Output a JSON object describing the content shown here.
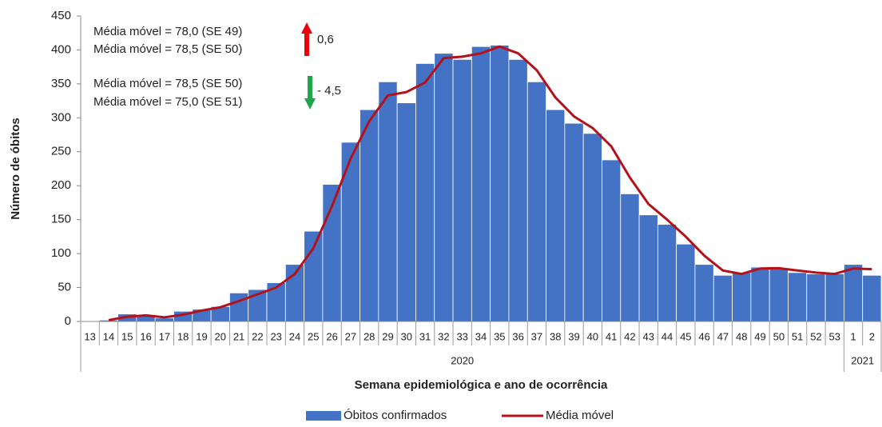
{
  "chart_data": {
    "type": "bar",
    "y_label": "Número de óbitos",
    "x_label": "Semana epidemiológica  e ano de ocorrência",
    "groups": [
      {
        "label": "2020",
        "categories": [
          "13",
          "14",
          "15",
          "16",
          "17",
          "18",
          "19",
          "20",
          "21",
          "22",
          "23",
          "24",
          "25",
          "26",
          "27",
          "28",
          "29",
          "30",
          "31",
          "32",
          "33",
          "34",
          "35",
          "36",
          "37",
          "38",
          "39",
          "40",
          "41",
          "42",
          "43",
          "44",
          "45",
          "46",
          "47",
          "48",
          "49",
          "50",
          "51",
          "52",
          "53"
        ]
      },
      {
        "label": "2021",
        "categories": [
          "1",
          "2"
        ]
      }
    ],
    "series": [
      {
        "name": "Óbitos confirmados",
        "type": "bar",
        "color": "#4472c4",
        "values": [
          0,
          2,
          11,
          10,
          5,
          15,
          18,
          22,
          42,
          47,
          57,
          84,
          133,
          202,
          264,
          312,
          353,
          322,
          380,
          395,
          386,
          405,
          407,
          386,
          353,
          312,
          292,
          277,
          238,
          188,
          157,
          143,
          114,
          84,
          68,
          72,
          80,
          78,
          72,
          70,
          70,
          84,
          68
        ]
      },
      {
        "name": "Média móvel",
        "type": "line",
        "color": "#b3121b",
        "values": [
          null,
          2,
          7,
          9,
          6,
          10,
          16,
          21,
          30,
          40,
          50,
          70,
          108,
          170,
          240,
          295,
          333,
          338,
          352,
          388,
          390,
          395,
          405,
          395,
          370,
          330,
          302,
          285,
          258,
          212,
          173,
          150,
          125,
          97,
          75,
          70,
          78,
          78.5,
          75,
          72,
          70,
          78,
          77
        ]
      }
    ],
    "ylim": [
      0,
      450
    ],
    "yticks": [
      0,
      50,
      100,
      150,
      200,
      250,
      300,
      350,
      400,
      450
    ],
    "annotations": [
      {
        "lines": [
          "Média móvel = 78,0 (SE 49)",
          "Média móvel = 78,5 (SE 50)"
        ],
        "change": "0,6"
      },
      {
        "lines": [
          "Média móvel = 78,5 (SE 50)",
          "Média móvel = 75,0 (SE 51)"
        ],
        "change": "- 4,5"
      }
    ]
  }
}
